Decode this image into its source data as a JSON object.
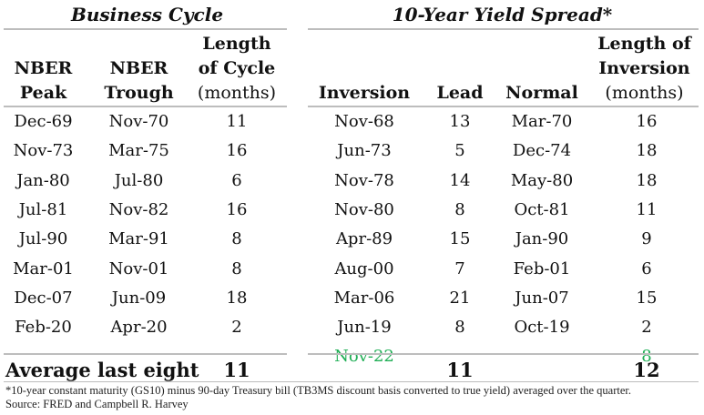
{
  "business_cycle": {
    "title": "Business Cycle",
    "headers": {
      "peak": [
        "NBER",
        "Peak"
      ],
      "trough": [
        "NBER",
        "Trough"
      ],
      "length": [
        "Length",
        "of Cycle",
        "(months)"
      ]
    },
    "rows": [
      {
        "peak": "Dec-69",
        "trough": "Nov-70",
        "length": "11"
      },
      {
        "peak": "Nov-73",
        "trough": "Mar-75",
        "length": "16"
      },
      {
        "peak": "Jan-80",
        "trough": "Jul-80",
        "length": "6"
      },
      {
        "peak": "Jul-81",
        "trough": "Nov-82",
        "length": "16"
      },
      {
        "peak": "Jul-90",
        "trough": "Mar-91",
        "length": "8"
      },
      {
        "peak": "Mar-01",
        "trough": "Nov-01",
        "length": "8"
      },
      {
        "peak": "Dec-07",
        "trough": "Jun-09",
        "length": "18"
      },
      {
        "peak": "Feb-20",
        "trough": "Apr-20",
        "length": "2"
      }
    ]
  },
  "yield_spread": {
    "title": "10-Year Yield Spread*",
    "headers": {
      "inversion": "Inversion",
      "lead": "Lead",
      "normal": "Normal",
      "length": [
        "Length of",
        "Inversion",
        "(months)"
      ]
    },
    "rows": [
      {
        "inversion": "Nov-68",
        "lead": "13",
        "normal": "Mar-70",
        "length": "16"
      },
      {
        "inversion": "Jun-73",
        "lead": "5",
        "normal": "Dec-74",
        "length": "18"
      },
      {
        "inversion": "Nov-78",
        "lead": "14",
        "normal": "May-80",
        "length": "18"
      },
      {
        "inversion": "Nov-80",
        "lead": "8",
        "normal": "Oct-81",
        "length": "11"
      },
      {
        "inversion": "Apr-89",
        "lead": "15",
        "normal": "Jan-90",
        "length": "9"
      },
      {
        "inversion": "Aug-00",
        "lead": "7",
        "normal": "Feb-01",
        "length": "6"
      },
      {
        "inversion": "Mar-06",
        "lead": "21",
        "normal": "Jun-07",
        "length": "15"
      },
      {
        "inversion": "Jun-19",
        "lead": "8",
        "normal": "Oct-19",
        "length": "2"
      },
      {
        "inversion": "Nov-22",
        "lead": "",
        "normal": "",
        "length": "8",
        "highlight": true
      }
    ],
    "highlight_color": "#1fae55"
  },
  "average": {
    "label": "Average last eight",
    "cycle_length": "11",
    "lead": "11",
    "inversion_length": "12"
  },
  "footnote": {
    "note": "*10-year constant maturity (GS10) minus 90-day Treasury bill (TB3MS discount basis converted to true yield) averaged over the quarter.",
    "source": "Source: FRED and Campbell R. Harvey"
  }
}
